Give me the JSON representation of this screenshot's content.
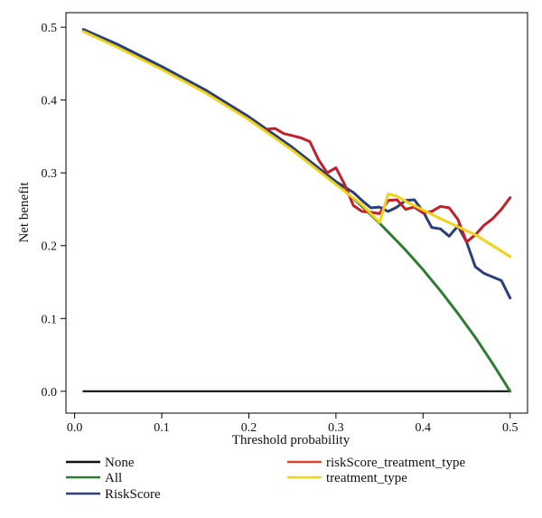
{
  "chart_data": {
    "type": "line",
    "title": "",
    "xlabel": "Threshold probability",
    "ylabel": "Net benefit",
    "xlim": [
      -0.01,
      0.52
    ],
    "ylim": [
      -0.03,
      0.52
    ],
    "xticks": [
      0.0,
      0.1,
      0.2,
      0.3,
      0.4,
      0.5
    ],
    "yticks": [
      0.0,
      0.1,
      0.2,
      0.3,
      0.4,
      0.5
    ],
    "xtick_labels": [
      "0.0",
      "0.1",
      "0.2",
      "0.3",
      "0.4",
      "0.5"
    ],
    "ytick_labels": [
      "0.0",
      "0.1",
      "0.2",
      "0.3",
      "0.4",
      "0.5"
    ],
    "grid": false,
    "legend_position": "bottom",
    "series": [
      {
        "name": "None",
        "color": "#111111",
        "x": [
          0.01,
          0.5
        ],
        "y": [
          0.0,
          0.0
        ]
      },
      {
        "name": "All",
        "color": "#2e7d32",
        "x": [
          0.01,
          0.05,
          0.1,
          0.15,
          0.2,
          0.25,
          0.3,
          0.33,
          0.35,
          0.38,
          0.4,
          0.42,
          0.44,
          0.46,
          0.48,
          0.5
        ],
        "y": [
          0.495,
          0.474,
          0.444,
          0.412,
          0.375,
          0.333,
          0.286,
          0.254,
          0.231,
          0.194,
          0.167,
          0.138,
          0.107,
          0.074,
          0.038,
          0.0
        ]
      },
      {
        "name": "RiskScore",
        "color": "#2b3f7a",
        "x": [
          0.01,
          0.05,
          0.1,
          0.15,
          0.2,
          0.25,
          0.3,
          0.32,
          0.33,
          0.34,
          0.35,
          0.36,
          0.37,
          0.38,
          0.39,
          0.4,
          0.41,
          0.42,
          0.43,
          0.44,
          0.45,
          0.46,
          0.47,
          0.48,
          0.49,
          0.5
        ],
        "y": [
          0.497,
          0.476,
          0.446,
          0.414,
          0.377,
          0.335,
          0.288,
          0.273,
          0.262,
          0.252,
          0.253,
          0.247,
          0.253,
          0.262,
          0.263,
          0.247,
          0.225,
          0.223,
          0.213,
          0.227,
          0.205,
          0.171,
          0.162,
          0.157,
          0.152,
          0.128
        ]
      },
      {
        "name": "riskScore_treatment_type",
        "color": "#c0202a",
        "x": [
          0.22,
          0.23,
          0.24,
          0.25,
          0.26,
          0.27,
          0.28,
          0.29,
          0.3,
          0.31,
          0.32,
          0.33,
          0.34,
          0.35,
          0.36,
          0.37,
          0.38,
          0.39,
          0.4,
          0.41,
          0.42,
          0.43,
          0.44,
          0.45,
          0.46,
          0.47,
          0.48,
          0.49,
          0.5
        ],
        "y": [
          0.36,
          0.361,
          0.354,
          0.351,
          0.348,
          0.343,
          0.318,
          0.3,
          0.307,
          0.284,
          0.255,
          0.247,
          0.246,
          0.244,
          0.262,
          0.263,
          0.25,
          0.253,
          0.245,
          0.247,
          0.254,
          0.252,
          0.236,
          0.205,
          0.215,
          0.228,
          0.237,
          0.25,
          0.266
        ]
      },
      {
        "name": "treatment_type",
        "color": "#f2d31b",
        "x": [
          0.01,
          0.05,
          0.1,
          0.15,
          0.2,
          0.25,
          0.3,
          0.33,
          0.35,
          0.36,
          0.37,
          0.38,
          0.4,
          0.42,
          0.44,
          0.46,
          0.48,
          0.5
        ],
        "y": [
          0.494,
          0.472,
          0.442,
          0.41,
          0.373,
          0.331,
          0.284,
          0.256,
          0.232,
          0.271,
          0.268,
          0.261,
          0.249,
          0.237,
          0.226,
          0.215,
          0.2,
          0.185
        ]
      }
    ],
    "legend": [
      {
        "label": "None",
        "color": "#111111"
      },
      {
        "label": "All",
        "color": "#2e7d32"
      },
      {
        "label": "RiskScore",
        "color": "#2b3f7a"
      },
      {
        "label": "riskScore_treatment_type",
        "color": "#d9472b"
      },
      {
        "label": "treatment_type",
        "color": "#f2d31b"
      }
    ]
  }
}
